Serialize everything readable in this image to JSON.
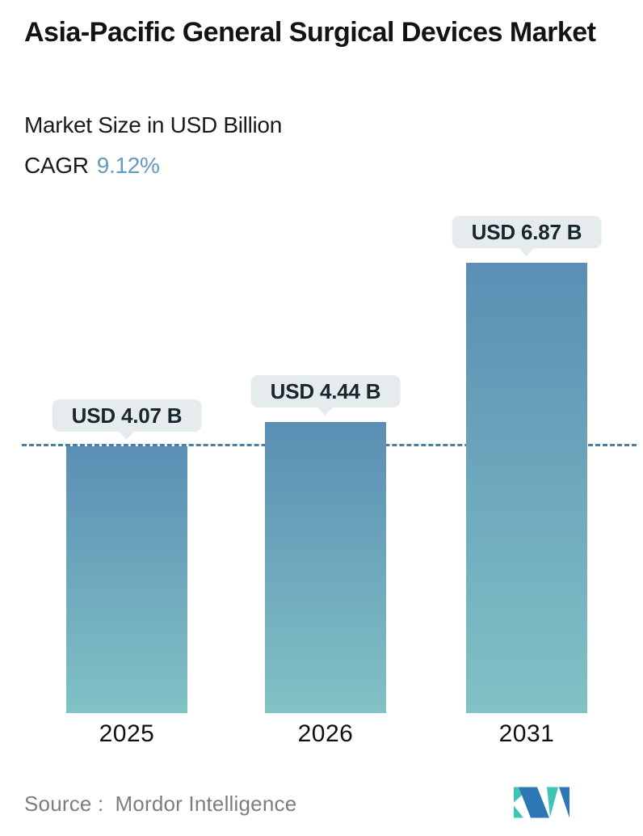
{
  "header": {
    "title": "Asia-Pacific General Surgical Devices Market",
    "subtitle": "Market Size in USD Billion",
    "cagr_label": "CAGR",
    "cagr_value": "9.12%"
  },
  "chart_data": {
    "type": "bar",
    "title": "Asia-Pacific General Surgical Devices Market",
    "ylabel": "Market Size in USD Billion",
    "unit": "USD Billion",
    "cagr_percent": 9.12,
    "categories": [
      "2025",
      "2026",
      "2031"
    ],
    "values": [
      4.07,
      4.44,
      6.87
    ],
    "value_labels": [
      "USD 4.07 B",
      "USD 4.44 B",
      "USD 6.87 B"
    ],
    "reference_line": {
      "value": 4.07,
      "style": "dashed",
      "color": "#4c7fa8"
    },
    "ylim": [
      0,
      7.2
    ],
    "grid": false,
    "legend": false,
    "bar_gradient_top": "#5b8eb4",
    "bar_gradient_bottom": "#80c2c5",
    "callout_bg": "#e6eced"
  },
  "footer": {
    "source_label": "Source :",
    "source_value": "Mordor Intelligence",
    "logo": {
      "name": "mordor-intelligence-logo",
      "teal": "#3ec4b4",
      "blue": "#2d77b4"
    }
  },
  "colors": {
    "cagr_accent": "#6699c2",
    "title_text": "#131313",
    "muted_text": "#7d7d7d"
  }
}
